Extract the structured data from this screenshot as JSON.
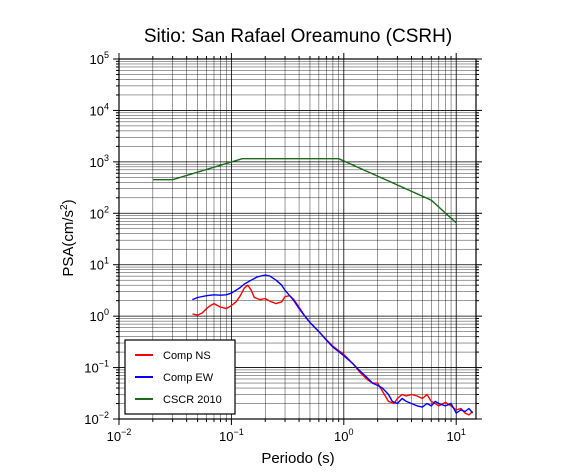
{
  "chart_data": {
    "type": "line",
    "title": "Sitio: San Rafael Oreamuno (CSRH)",
    "xlabel": "Periodo (s)",
    "ylabel": "PSA(cm/s",
    "ylabel_sup": "2",
    "ylabel_close": ")",
    "xscale": "log",
    "yscale": "log",
    "xlim": [
      0.01,
      15
    ],
    "ylim": [
      0.01,
      100000
    ],
    "grid": true,
    "legend_position": "bottom-left",
    "x_ticks": [
      {
        "value": 0.01,
        "base": "10",
        "exp": "−2"
      },
      {
        "value": 0.1,
        "base": "10",
        "exp": "−1"
      },
      {
        "value": 1,
        "base": "10",
        "exp": "0"
      },
      {
        "value": 10,
        "base": "10",
        "exp": "1"
      }
    ],
    "y_ticks": [
      {
        "value": 0.01,
        "base": "10",
        "exp": "−2"
      },
      {
        "value": 0.1,
        "base": "10",
        "exp": "−1"
      },
      {
        "value": 1,
        "base": "10",
        "exp": "0"
      },
      {
        "value": 10,
        "base": "10",
        "exp": "1"
      },
      {
        "value": 100,
        "base": "10",
        "exp": "2"
      },
      {
        "value": 1000,
        "base": "10",
        "exp": "3"
      },
      {
        "value": 10000,
        "base": "10",
        "exp": "4"
      },
      {
        "value": 100000,
        "base": "10",
        "exp": "5"
      }
    ],
    "series": [
      {
        "name": "Comp NS",
        "color": "#ff0000",
        "points": [
          [
            0.045,
            1.1
          ],
          [
            0.05,
            1.05
          ],
          [
            0.055,
            1.15
          ],
          [
            0.06,
            1.4
          ],
          [
            0.065,
            1.6
          ],
          [
            0.07,
            1.75
          ],
          [
            0.08,
            1.5
          ],
          [
            0.09,
            1.4
          ],
          [
            0.1,
            1.6
          ],
          [
            0.11,
            1.9
          ],
          [
            0.12,
            2.5
          ],
          [
            0.13,
            3.5
          ],
          [
            0.14,
            4.0
          ],
          [
            0.15,
            3.2
          ],
          [
            0.16,
            2.3
          ],
          [
            0.18,
            2.1
          ],
          [
            0.2,
            2.2
          ],
          [
            0.22,
            1.95
          ],
          [
            0.25,
            1.75
          ],
          [
            0.28,
            1.9
          ],
          [
            0.3,
            2.4
          ],
          [
            0.33,
            2.5
          ],
          [
            0.36,
            2.1
          ],
          [
            0.4,
            1.5
          ],
          [
            0.45,
            1.0
          ],
          [
            0.5,
            0.75
          ],
          [
            0.6,
            0.5
          ],
          [
            0.7,
            0.35
          ],
          [
            0.8,
            0.26
          ],
          [
            1.0,
            0.18
          ],
          [
            1.2,
            0.12
          ],
          [
            1.4,
            0.08
          ],
          [
            1.6,
            0.06
          ],
          [
            1.8,
            0.05
          ],
          [
            2.0,
            0.05
          ],
          [
            2.2,
            0.035
          ],
          [
            2.5,
            0.022
          ],
          [
            2.8,
            0.02
          ],
          [
            3.0,
            0.025
          ],
          [
            3.3,
            0.03
          ],
          [
            3.6,
            0.028
          ],
          [
            4.0,
            0.03
          ],
          [
            4.5,
            0.028
          ],
          [
            5.0,
            0.025
          ],
          [
            5.5,
            0.03
          ],
          [
            6.0,
            0.022
          ],
          [
            6.5,
            0.02
          ],
          [
            7.0,
            0.018
          ],
          [
            8.0,
            0.021
          ],
          [
            9.0,
            0.018
          ],
          [
            10.0,
            0.015
          ],
          [
            11.0,
            0.016
          ],
          [
            12.0,
            0.013
          ],
          [
            13.0,
            0.012
          ],
          [
            14.0,
            0.014
          ]
        ]
      },
      {
        "name": "Comp EW",
        "color": "#0000ff",
        "points": [
          [
            0.045,
            2.1
          ],
          [
            0.05,
            2.3
          ],
          [
            0.06,
            2.5
          ],
          [
            0.07,
            2.6
          ],
          [
            0.08,
            2.55
          ],
          [
            0.09,
            2.6
          ],
          [
            0.1,
            2.8
          ],
          [
            0.11,
            3.2
          ],
          [
            0.12,
            3.6
          ],
          [
            0.13,
            4.2
          ],
          [
            0.15,
            5.0
          ],
          [
            0.17,
            5.8
          ],
          [
            0.2,
            6.3
          ],
          [
            0.22,
            6.0
          ],
          [
            0.25,
            5.0
          ],
          [
            0.28,
            4.0
          ],
          [
            0.3,
            3.2
          ],
          [
            0.33,
            2.5
          ],
          [
            0.36,
            2.0
          ],
          [
            0.4,
            1.4
          ],
          [
            0.45,
            1.0
          ],
          [
            0.5,
            0.75
          ],
          [
            0.6,
            0.5
          ],
          [
            0.7,
            0.34
          ],
          [
            0.8,
            0.25
          ],
          [
            1.0,
            0.17
          ],
          [
            1.2,
            0.12
          ],
          [
            1.4,
            0.085
          ],
          [
            1.6,
            0.065
          ],
          [
            1.8,
            0.05
          ],
          [
            2.0,
            0.045
          ],
          [
            2.2,
            0.04
          ],
          [
            2.5,
            0.03
          ],
          [
            2.7,
            0.022
          ],
          [
            3.0,
            0.02
          ],
          [
            3.3,
            0.025
          ],
          [
            3.6,
            0.022
          ],
          [
            4.0,
            0.02
          ],
          [
            4.5,
            0.018
          ],
          [
            5.0,
            0.017
          ],
          [
            5.5,
            0.02
          ],
          [
            6.0,
            0.018
          ],
          [
            6.5,
            0.022
          ],
          [
            7.0,
            0.02
          ],
          [
            8.0,
            0.018
          ],
          [
            9.0,
            0.02
          ],
          [
            10.0,
            0.013
          ],
          [
            11.0,
            0.015
          ],
          [
            12.0,
            0.014
          ],
          [
            13.0,
            0.016
          ],
          [
            14.0,
            0.013
          ]
        ]
      },
      {
        "name": "CSCR 2010",
        "color": "#1a6b1a",
        "points": [
          [
            0.02,
            450
          ],
          [
            0.03,
            450
          ],
          [
            0.125,
            1150
          ],
          [
            0.9,
            1150
          ],
          [
            6.0,
            180
          ],
          [
            10.0,
            65
          ]
        ]
      }
    ]
  }
}
